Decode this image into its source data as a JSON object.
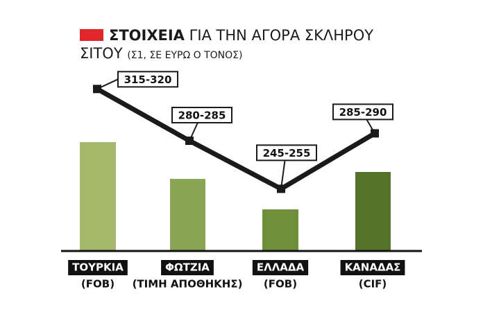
{
  "chart_data": {
    "type": "line",
    "title_bold": "ΣΤΟΙΧΕΙΑ",
    "title": "ΓΙΑ ΤΗΝ ΑΓΟΡΑ ΣΚΛΗΡΟΥ ΣΙΤΟΥ",
    "subtitle": "(Σ1, ΣΕ ΕΥΡΩ Ο ΤΟΝΟΣ)",
    "categories": [
      "ΤΟΥΡΚΙΑ",
      "ΦΩΤΖΙΑ",
      "ΕΛΛΑΔΑ",
      "ΚΑΝΑΔΑΣ"
    ],
    "category_notes": [
      "(FOB)",
      "(ΤΙΜΗ ΑΠΟΘΗΚΗΣ)",
      "(FOB)",
      "(CIF)"
    ],
    "series": [
      {
        "low": [
          315,
          280,
          245,
          285
        ],
        "high": [
          320,
          285,
          255,
          290
        ],
        "value_labels": [
          "315-320",
          "280-285",
          "245-255",
          "285-290"
        ],
        "color": "#1a1a1a"
      }
    ]
  }
}
